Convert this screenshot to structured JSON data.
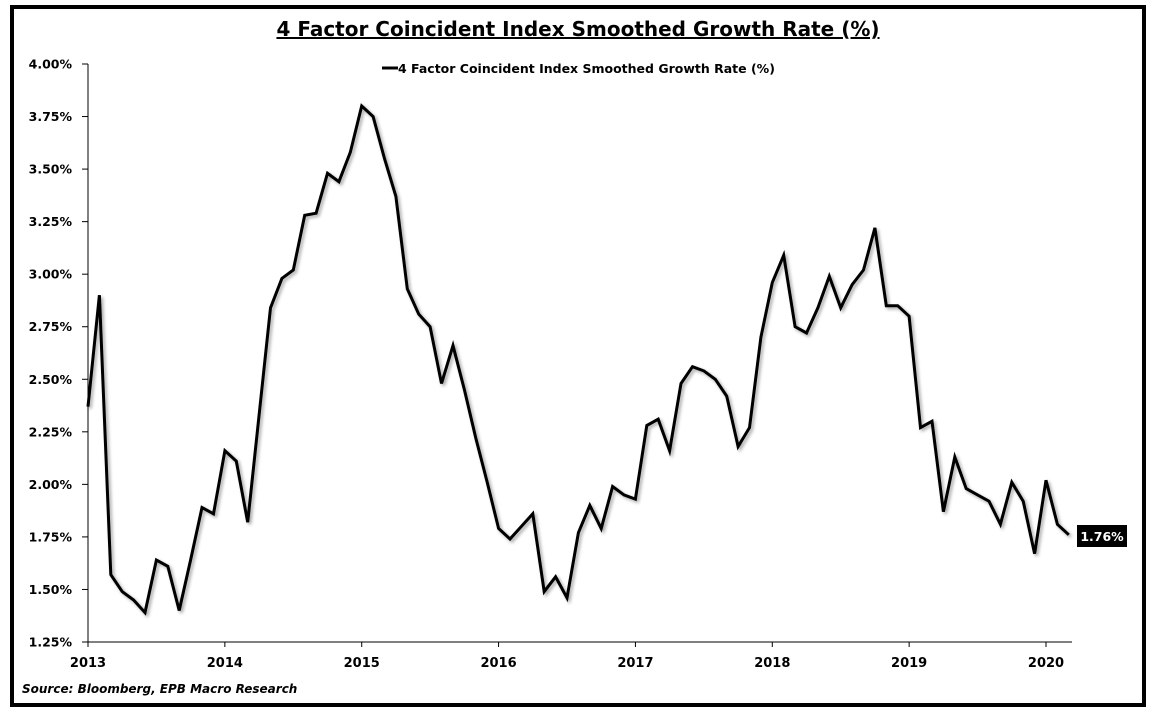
{
  "chart_data": {
    "type": "line",
    "title": "4 Factor Coincident Index Smoothed Growth Rate (%)",
    "xlabel": "",
    "ylabel": "",
    "source": "Source: Bloomberg, EPB Macro Research",
    "ylim": [
      1.25,
      4.0
    ],
    "y_ticks": [
      1.25,
      1.5,
      1.75,
      2.0,
      2.25,
      2.5,
      2.75,
      3.0,
      3.25,
      3.5,
      3.75,
      4.0
    ],
    "y_tick_labels": [
      "1.25%",
      "1.50%",
      "1.75%",
      "2.00%",
      "2.25%",
      "2.50%",
      "2.75%",
      "3.00%",
      "3.25%",
      "3.50%",
      "3.75%",
      "4.00%"
    ],
    "x_ticks": [
      "2013",
      "2014",
      "2015",
      "2016",
      "2017",
      "2018",
      "2019",
      "2020"
    ],
    "x_start": "2013-01",
    "x_end": "2020-03",
    "legend": {
      "position": "top-center",
      "entries": [
        "4 Factor Coincident Index Smoothed Growth Rate (%)"
      ]
    },
    "grid": false,
    "end_label": "1.76%",
    "series": [
      {
        "name": "4 Factor Coincident Index Smoothed Growth Rate (%)",
        "color": "#000000",
        "frequency": "monthly",
        "values": [
          2.37,
          2.9,
          1.57,
          1.49,
          1.45,
          1.39,
          1.64,
          1.61,
          1.4,
          1.64,
          1.89,
          1.86,
          2.16,
          2.11,
          1.82,
          2.33,
          2.84,
          2.98,
          3.02,
          3.28,
          3.29,
          3.48,
          3.44,
          3.58,
          3.8,
          3.75,
          3.55,
          3.37,
          2.93,
          2.81,
          2.75,
          2.48,
          2.66,
          2.45,
          2.22,
          2.01,
          1.79,
          1.74,
          1.8,
          1.86,
          1.49,
          1.56,
          1.46,
          1.77,
          1.9,
          1.79,
          1.99,
          1.95,
          1.93,
          2.28,
          2.31,
          2.16,
          2.48,
          2.56,
          2.54,
          2.5,
          2.42,
          2.18,
          2.27,
          2.7,
          2.96,
          3.09,
          2.75,
          2.72,
          2.84,
          2.99,
          2.84,
          2.95,
          3.02,
          3.22,
          2.85,
          2.85,
          2.8,
          2.27,
          2.3,
          1.87,
          2.13,
          1.98,
          1.95,
          1.92,
          1.81,
          2.01,
          1.92,
          1.67,
          2.02,
          1.81,
          1.76
        ]
      }
    ]
  }
}
